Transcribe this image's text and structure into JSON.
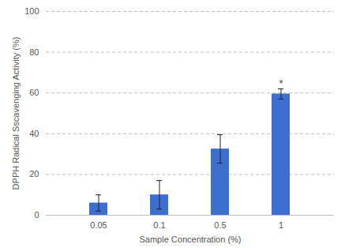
{
  "chart_data": {
    "type": "bar",
    "x_label": "Sample Concentration (%)",
    "y_label": "DPPH Radical Sscavenging Activity (%)",
    "categories": [
      "0.05",
      "0.1",
      "0.5",
      "1"
    ],
    "values": [
      6,
      10,
      32.5,
      59.5
    ],
    "errors": [
      4,
      7,
      7,
      2.5
    ],
    "annotations": [
      {
        "category": "1",
        "text": "*"
      }
    ],
    "color": "#3d6fd1",
    "ylim": [
      0,
      100
    ],
    "yticks": [
      0,
      20,
      40,
      60,
      80,
      100
    ],
    "grid": true
  }
}
